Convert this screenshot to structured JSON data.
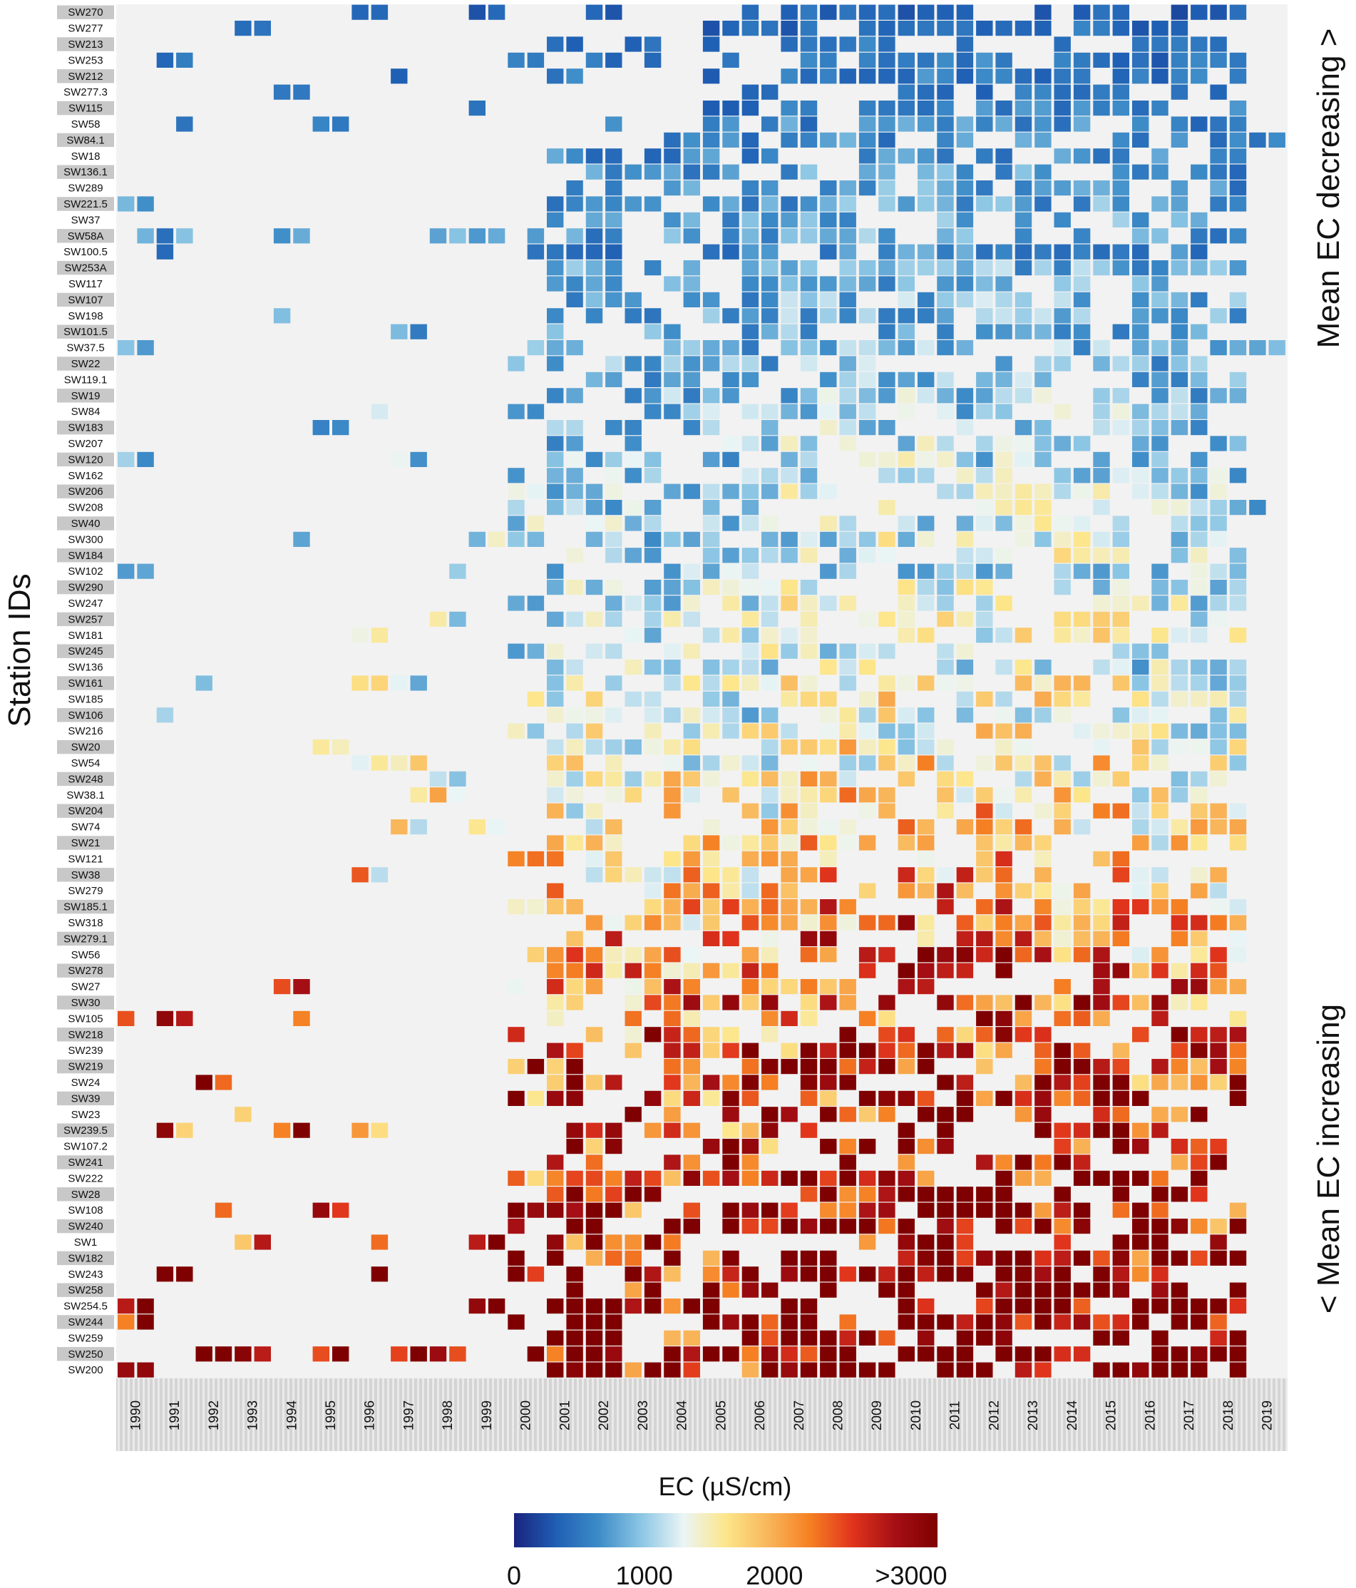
{
  "chart_data": {
    "type": "heatmap",
    "title": "",
    "ylabel": "Station IDs",
    "right_label_top": "Mean EC decreasing >",
    "right_label_bottom": "< Mean EC increasing",
    "legend_title": "EC (µS/cm)",
    "legend_ticks": [
      "0",
      "1000",
      "2000",
      ">3000"
    ],
    "legend_tick_values": [
      0,
      1000,
      2000,
      3000
    ],
    "colorscale": [
      "#1a237e",
      "#1f5fb4",
      "#3d8cc8",
      "#8cc6e4",
      "#eaf5f5",
      "#fde68a",
      "#f9b65a",
      "#f57f22",
      "#e0341c",
      "#a50f15",
      "#7f0000"
    ],
    "missing_color": "#ffffff",
    "panel_color": "#f2f2f2",
    "clim": [
      0,
      3000
    ],
    "years": [
      "1990",
      "1991",
      "1992",
      "1993",
      "1994",
      "1995",
      "1996",
      "1997",
      "1998",
      "1999",
      "2000",
      "2001",
      "2002",
      "2003",
      "2004",
      "2005",
      "2006",
      "2007",
      "2008",
      "2009",
      "2010",
      "2011",
      "2012",
      "2013",
      "2014",
      "2015",
      "2016",
      "2017",
      "2018",
      "2019"
    ],
    "stations": [
      "SW270",
      "SW277",
      "SW213",
      "SW253",
      "SW212",
      "SW277.3",
      "SW115",
      "SW58",
      "SW84.1",
      "SW18",
      "SW136.1",
      "SW289",
      "SW221.5",
      "SW37",
      "SW58A",
      "SW100.5",
      "SW253A",
      "SW117",
      "SW107",
      "SW198",
      "SW101.5",
      "SW37.5",
      "SW22",
      "SW119.1",
      "SW19",
      "SW84",
      "SW183",
      "SW207",
      "SW120",
      "SW162",
      "SW206",
      "SW208",
      "SW40",
      "SW300",
      "SW184",
      "SW102",
      "SW290",
      "SW247",
      "SW257",
      "SW181",
      "SW245",
      "SW136",
      "SW161",
      "SW185",
      "SW106",
      "SW216",
      "SW20",
      "SW54",
      "SW248",
      "SW38.1",
      "SW204",
      "SW74",
      "SW21",
      "SW121",
      "SW38",
      "SW279",
      "SW185.1",
      "SW318",
      "SW279.1",
      "SW56",
      "SW278",
      "SW27",
      "SW30",
      "SW105",
      "SW218",
      "SW239",
      "SW219",
      "SW24",
      "SW39",
      "SW23",
      "SW239.5",
      "SW107.2",
      "SW241",
      "SW222",
      "SW28",
      "SW108",
      "SW240",
      "SW1",
      "SW182",
      "SW243",
      "SW258",
      "SW254.5",
      "SW244",
      "SW259",
      "SW250",
      "SW200"
    ],
    "station_mean_ec": [
      300,
      350,
      380,
      420,
      440,
      360,
      470,
      500,
      520,
      560,
      580,
      600,
      620,
      640,
      660,
      500,
      680,
      700,
      720,
      700,
      680,
      740,
      760,
      780,
      800,
      820,
      840,
      860,
      880,
      900,
      920,
      940,
      960,
      980,
      1000,
      900,
      1020,
      1040,
      1060,
      1080,
      1100,
      1000,
      1150,
      1200,
      1100,
      1200,
      1250,
      1300,
      1350,
      1400,
      1450,
      1500,
      1550,
      1600,
      1650,
      1700,
      1750,
      1800,
      1850,
      1900,
      1950,
      2000,
      2050,
      2100,
      2150,
      2200,
      2250,
      2300,
      2350,
      2400,
      2450,
      2500,
      2600,
      2600,
      2650,
      2700,
      2750,
      2800,
      2850,
      2900,
      2950,
      3000,
      3000,
      3000,
      3000,
      3000
    ]
  }
}
